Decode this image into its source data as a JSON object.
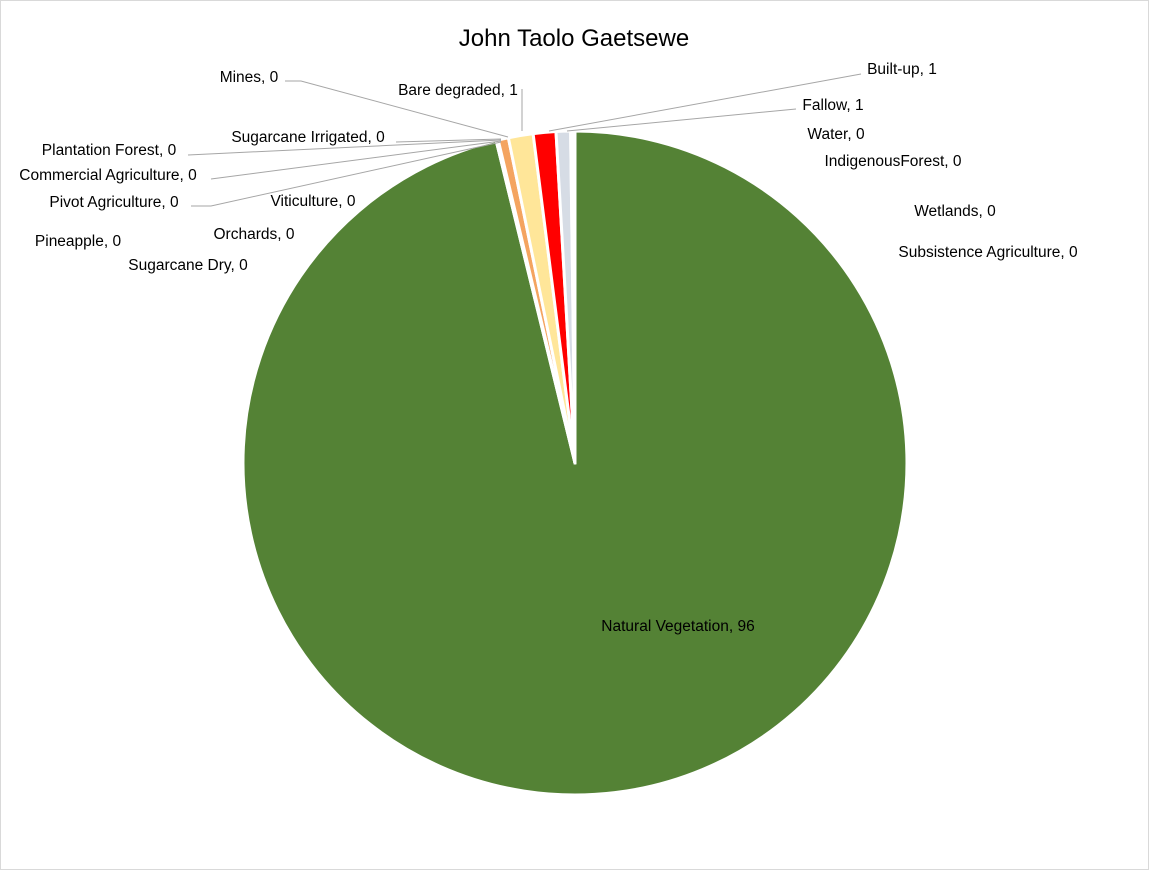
{
  "chart_data": {
    "type": "pie",
    "title": "John Taolo Gaetsewe",
    "slices": [
      {
        "label": "Natural Vegetation",
        "value": 96,
        "display_value": "96",
        "color": "#548235"
      },
      {
        "label": "Sugarcane Irrigated",
        "value": 0.1,
        "display_value": "0",
        "color": "#ffffff"
      },
      {
        "label": "Mines",
        "value": 0.5,
        "display_value": "0",
        "color": "#f4a460"
      },
      {
        "label": "Bare degraded",
        "value": 1.2,
        "display_value": "1",
        "color": "#ffe699"
      },
      {
        "label": "Built-up",
        "value": 1.1,
        "display_value": "1",
        "color": "#ff0000"
      },
      {
        "label": "Fallow",
        "value": 0.7,
        "display_value": "1",
        "color": "#d6dce5"
      },
      {
        "label": "Water",
        "value": 0.05,
        "display_value": "0",
        "color": "#5b9bd5"
      },
      {
        "label": "IndigenousForest",
        "value": 0.02,
        "display_value": "0",
        "color": "#375623"
      },
      {
        "label": "Wetlands",
        "value": 0.02,
        "display_value": "0",
        "color": "#9dc3e6"
      },
      {
        "label": "Subsistence Agriculture",
        "value": 0.02,
        "display_value": "0",
        "color": "#c55a11"
      },
      {
        "label": "Plantation Forest",
        "value": 0.02,
        "display_value": "0",
        "color": "#7f6000"
      },
      {
        "label": "Commercial Agriculture",
        "value": 0.02,
        "display_value": "0",
        "color": "#a9d18e"
      },
      {
        "label": "Pivot  Agriculture",
        "value": 0.02,
        "display_value": "0",
        "color": "#70ad47"
      },
      {
        "label": "Viticulture",
        "value": 0.01,
        "display_value": "0",
        "color": "#7030a0"
      },
      {
        "label": "Orchards",
        "value": 0.01,
        "display_value": "0",
        "color": "#ffc000"
      },
      {
        "label": "Pineapple",
        "value": 0.01,
        "display_value": "0",
        "color": "#ffd966"
      },
      {
        "label": "Sugarcane Dry",
        "value": 0.01,
        "display_value": "0",
        "color": "#8faadc"
      }
    ],
    "legend": "none"
  }
}
